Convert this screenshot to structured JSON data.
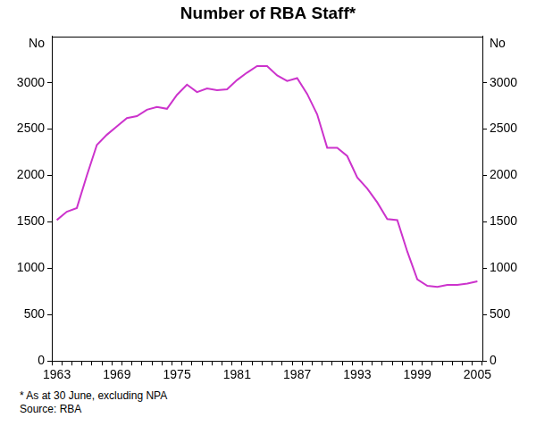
{
  "chart_data": {
    "type": "line",
    "title": "Number of RBA Staff*",
    "ylabel": "No",
    "y2label": "No",
    "notes": [
      "* As at 30 June, excluding NPA",
      "Source: RBA"
    ],
    "categories": [
      "1963",
      null,
      null,
      null,
      null,
      null,
      "1969",
      null,
      null,
      null,
      null,
      null,
      "1975",
      null,
      null,
      null,
      null,
      null,
      "1981",
      null,
      null,
      null,
      null,
      null,
      "1987",
      null,
      null,
      null,
      null,
      null,
      "1993",
      null,
      null,
      null,
      null,
      null,
      "1999",
      null,
      null,
      null,
      null,
      null,
      "2005"
    ],
    "values": [
      1520,
      1610,
      1650,
      2000,
      2330,
      2440,
      2530,
      2620,
      2640,
      2710,
      2740,
      2720,
      2870,
      2980,
      2900,
      2940,
      2920,
      2930,
      3030,
      3110,
      3180,
      3180,
      3080,
      3020,
      3050,
      2880,
      2660,
      2300,
      2300,
      2210,
      1980,
      1860,
      1710,
      1530,
      1520,
      1180,
      880,
      810,
      800,
      820,
      820,
      835,
      860
    ],
    "color": "#cc33cc",
    "ylim": [
      0,
      3500
    ],
    "yticks": [
      0,
      500,
      1000,
      1500,
      2000,
      2500,
      3000
    ],
    "y2lim": [
      0,
      3500
    ],
    "y2ticks": [
      0,
      500,
      1000,
      1500,
      2000,
      2500,
      3000
    ],
    "grid": false
  }
}
